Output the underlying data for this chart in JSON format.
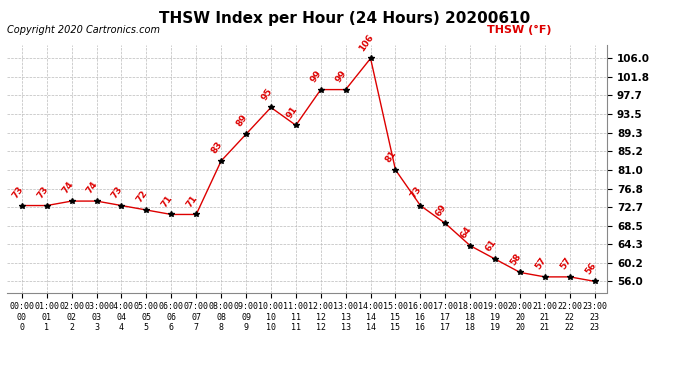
{
  "title": "THSW Index per Hour (24 Hours) 20200610",
  "copyright": "Copyright 2020 Cartronics.com",
  "legend_label": "THSW (°F)",
  "hours": [
    0,
    1,
    2,
    3,
    4,
    5,
    6,
    7,
    8,
    9,
    10,
    11,
    12,
    13,
    14,
    15,
    16,
    17,
    18,
    19,
    20,
    21,
    22,
    23
  ],
  "values": [
    73,
    73,
    74,
    74,
    73,
    72,
    71,
    71,
    83,
    89,
    95,
    91,
    99,
    99,
    106,
    81,
    73,
    69,
    64,
    61,
    58,
    57,
    57,
    56
  ],
  "yticks": [
    56.0,
    60.2,
    64.3,
    68.5,
    72.7,
    76.8,
    81.0,
    85.2,
    89.3,
    93.5,
    97.7,
    101.8,
    106.0
  ],
  "ylim": [
    53.5,
    109.0
  ],
  "xlim": [
    -0.6,
    23.5
  ],
  "line_color": "#dd0000",
  "marker_color": "black",
  "label_color": "#dd0000",
  "title_color": "black",
  "bg_color": "white",
  "grid_color": "#bbbbbb",
  "copyright_color": "black",
  "legend_color": "#dd0000",
  "title_fontsize": 11,
  "annotation_fontsize": 6.5,
  "copyright_fontsize": 7,
  "legend_fontsize": 8,
  "xtick_fontsize": 6,
  "ytick_fontsize": 7.5
}
